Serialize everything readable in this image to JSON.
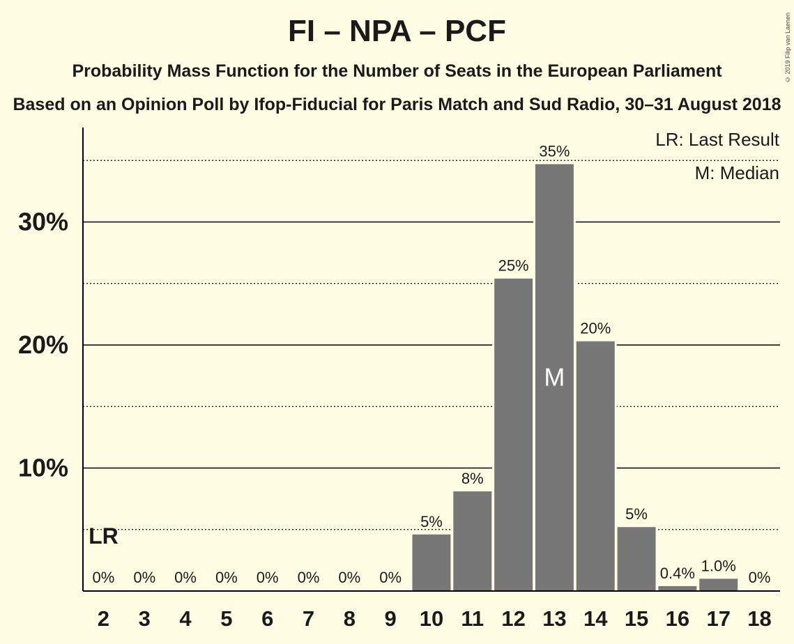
{
  "title": "FI – NPA – PCF",
  "subtitle": "Probability Mass Function for the Number of Seats in the European Parliament",
  "subtitle2": "Based on an Opinion Poll by Ifop-Fiducial for Paris Match and Sud Radio, 30–31 August 2018",
  "copyright": "© 2019 Filip van Laenen",
  "legend": {
    "last_result": "LR: Last Result",
    "median": "M: Median"
  },
  "markers": {
    "last_result_label": "LR",
    "median_label": "M"
  },
  "colors": {
    "background": "#FEFDE3",
    "bar": "#777777"
  },
  "chart_data": {
    "type": "bar",
    "categories": [
      "2",
      "3",
      "4",
      "5",
      "6",
      "7",
      "8",
      "9",
      "10",
      "11",
      "12",
      "13",
      "14",
      "15",
      "16",
      "17",
      "18"
    ],
    "values": [
      0,
      0,
      0,
      0,
      0,
      0,
      0,
      0,
      4.6,
      8.1,
      25.4,
      34.7,
      20.3,
      5.2,
      0.4,
      1.0,
      0
    ],
    "data_labels": [
      "0%",
      "0%",
      "0%",
      "0%",
      "0%",
      "0%",
      "0%",
      "0%",
      "5%",
      "8%",
      "25%",
      "35%",
      "20%",
      "5%",
      "0.4%",
      "1.0%",
      "0%"
    ],
    "y_ticks": [
      "10%",
      "20%",
      "30%"
    ],
    "y_tick_values": [
      10,
      20,
      30
    ],
    "ylim": [
      0,
      37.7
    ],
    "solid_gridlines": [
      10,
      20,
      30
    ],
    "dotted_gridlines": [
      5,
      15,
      25,
      35
    ],
    "last_result_seat": "2",
    "median_seat": "13",
    "legend_position": "top-right"
  }
}
